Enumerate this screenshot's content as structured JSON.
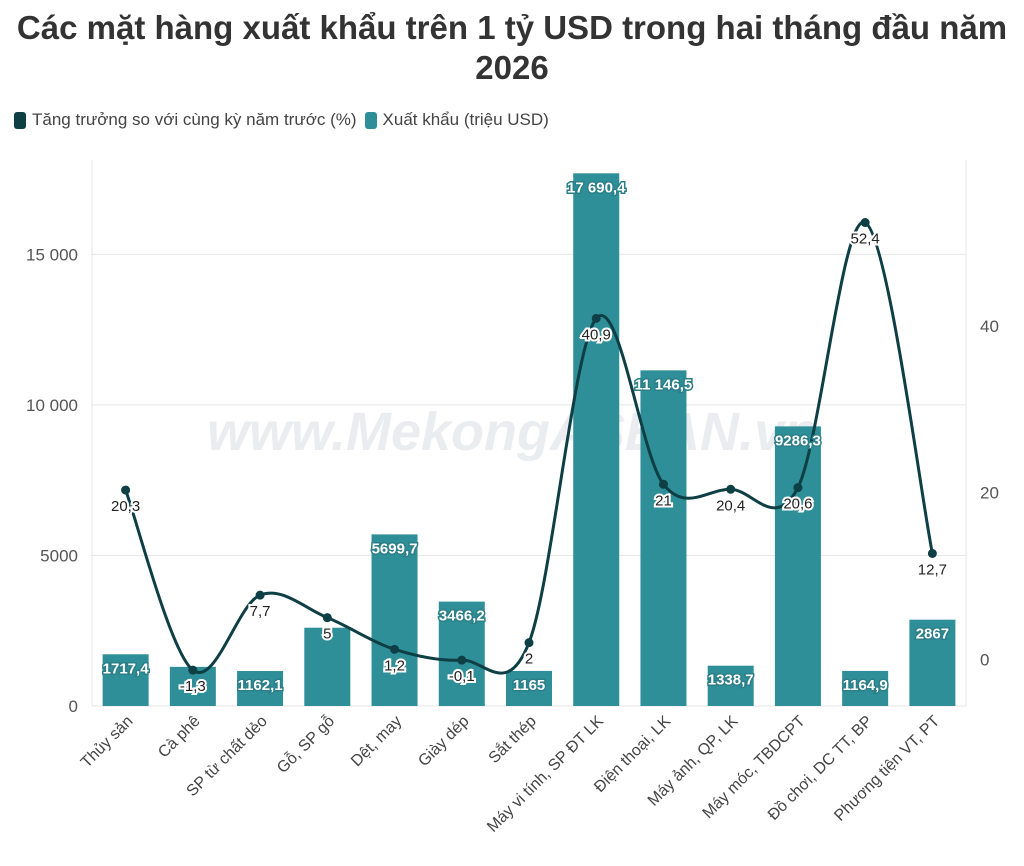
{
  "title": "Các mặt hàng xuất khẩu trên 1 tỷ USD trong hai tháng đầu năm 2026",
  "watermark": "www.MekongASEAN.vn",
  "colors": {
    "bar": "#2f8f98",
    "line": "#0e3f45",
    "grid": "#e6e6e6"
  },
  "chart_data": {
    "type": "bar",
    "title": "Các mặt hàng xuất khẩu trên 1 tỷ USD trong hai tháng đầu năm 2026",
    "legend": "top-left",
    "categories": [
      "Thủy sản",
      "Cà phê",
      "SP từ chất dẻo",
      "Gỗ, SP gỗ",
      "Dệt, may",
      "Giày dép",
      "Sắt thép",
      "Máy vi tính, SP ĐT LK",
      "Điện thoại, LK",
      "Máy ảnh, QP, LK",
      "Máy móc, TBDCPT",
      "Đồ chơi, DC TT, BP",
      "Phương tiện VT, PT"
    ],
    "series": [
      {
        "name": "Tăng trưởng so với cùng kỳ năm trước (%)",
        "type": "line",
        "axis": "right",
        "values": [
          20.3,
          -1.3,
          7.7,
          5,
          1.2,
          -0.1,
          2,
          40.9,
          21,
          20.4,
          20.6,
          52.4,
          12.7
        ],
        "labels": [
          "20,3",
          "-1,3",
          "7,7",
          "5",
          "1,2",
          "-0,1",
          "2",
          "40,9",
          "21",
          "20,4",
          "20,6",
          "52,4",
          "12,7"
        ]
      },
      {
        "name": "Xuất khẩu (triệu USD)",
        "type": "bar",
        "axis": "left",
        "values": [
          1717.4,
          1300,
          1162.1,
          2600,
          5699.7,
          3466.2,
          1165,
          17690.4,
          11146.5,
          1338.7,
          9286.3,
          1164.9,
          2867
        ],
        "labels": [
          "1717,4",
          "",
          "1162,1",
          "",
          "5699,7",
          "3466,2",
          "1165",
          "17 690,4",
          "11 146,5",
          "1338,7",
          "9286,3",
          "1164,9",
          "2867"
        ]
      }
    ],
    "y_left": {
      "ylim": [
        0,
        17800
      ],
      "ticks": [
        0,
        5000,
        10000,
        15000
      ],
      "tick_labels": [
        "0",
        "5000",
        "10 000",
        "15 000"
      ]
    },
    "y_right": {
      "ylim": [
        -5.6,
        58.7
      ],
      "ticks": [
        0,
        20,
        40
      ],
      "tick_labels": [
        "0",
        "20",
        "40"
      ]
    },
    "grid": true
  }
}
